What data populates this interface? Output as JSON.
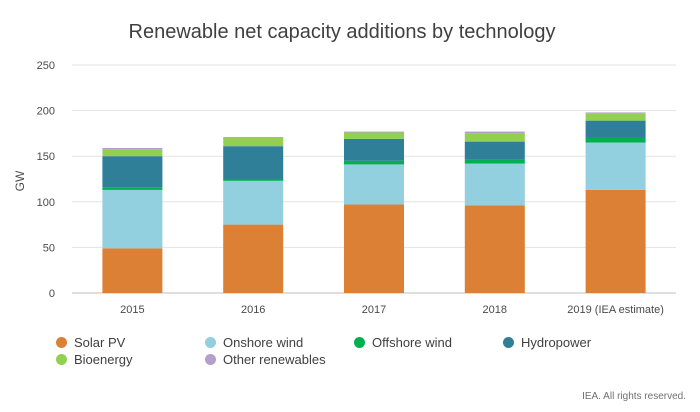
{
  "chart_data": {
    "type": "bar",
    "stacked": true,
    "title": "Renewable net capacity additions by technology",
    "xlabel": "",
    "ylabel": "GW",
    "ylim": [
      0,
      250
    ],
    "yticks": [
      0,
      50,
      100,
      150,
      200,
      250
    ],
    "grid": true,
    "legend_position": "bottom",
    "categories": [
      "2015",
      "2016",
      "2017",
      "2018",
      "2019 (IEA estimate)"
    ],
    "series": [
      {
        "name": "Solar PV",
        "color": "#dc8036",
        "values": [
          49,
          75,
          97,
          96,
          113
        ]
      },
      {
        "name": "Onshore wind",
        "color": "#92cfdf",
        "values": [
          64,
          48,
          44,
          46,
          52
        ]
      },
      {
        "name": "Offshore wind",
        "color": "#00b050",
        "values": [
          3,
          2,
          4,
          4,
          5
        ]
      },
      {
        "name": "Hydropower",
        "color": "#2f7f98",
        "values": [
          34,
          36,
          24,
          20,
          19
        ]
      },
      {
        "name": "Bioenergy",
        "color": "#92d050",
        "values": [
          7,
          9,
          7,
          9,
          8
        ]
      },
      {
        "name": "Other renewables",
        "color": "#b49fcc",
        "values": [
          2,
          1,
          1,
          2,
          1
        ]
      }
    ]
  },
  "footer": {
    "text": "IEA. All rights reserved."
  }
}
